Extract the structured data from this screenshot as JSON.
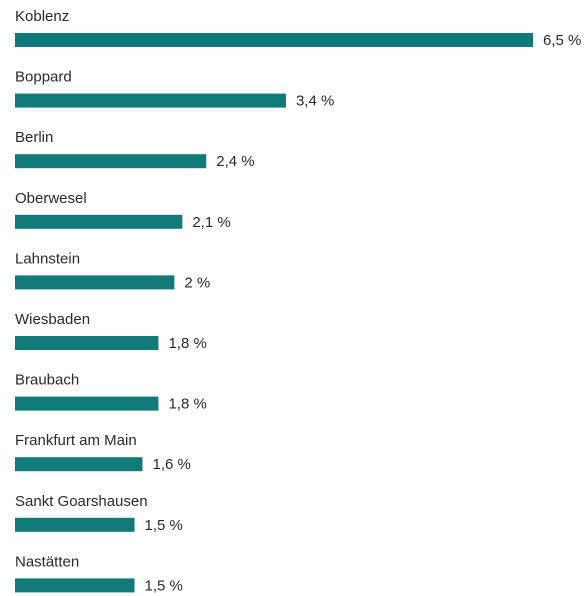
{
  "chart_data": {
    "type": "bar",
    "orientation": "horizontal",
    "color": "#137a7a",
    "categories": [
      "Koblenz",
      "Boppard",
      "Berlin",
      "Oberwesel",
      "Lahnstein",
      "Wiesbaden",
      "Braubach",
      "Frankfurt am Main",
      "Sankt Goarshausen",
      "Nastätten"
    ],
    "values": [
      6.5,
      3.4,
      2.4,
      2.1,
      2,
      1.8,
      1.8,
      1.6,
      1.5,
      1.5
    ],
    "value_labels": [
      "6,5 %",
      "3,4 %",
      "2,4 %",
      "2,1 %",
      "2 %",
      "1,8 %",
      "1,8 %",
      "1,6 %",
      "1,5 %",
      "1,5 %"
    ]
  }
}
